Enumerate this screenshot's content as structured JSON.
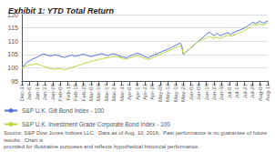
{
  "chart_data": {
    "type": "line",
    "title": "Exhibit 1: YTD Total Return",
    "footnote": "Source: S&P Dow Jones Indices LLC.  Data as of Aug. 10, 2016.  Past performance is no guarantee of future results.  Chart is\nprovided for illustrative purposes and reflects hypothetical historical performance.",
    "categories": [
      "Dec-31",
      null,
      null,
      null,
      null,
      "Jan-07",
      null,
      null,
      null,
      null,
      "Jan-14",
      null,
      null,
      null,
      null,
      "Jan-21",
      null,
      null,
      null,
      null,
      "Jan-28",
      null,
      null,
      null,
      null,
      "Feb-04",
      null,
      null,
      null,
      null,
      "Feb-11",
      null,
      null,
      null,
      null,
      "Feb-18",
      null,
      null,
      null,
      null,
      "Feb-25",
      null,
      null,
      null,
      null,
      "Mar-03",
      null,
      null,
      null,
      null,
      "Mar-10",
      null,
      null,
      null,
      null,
      "Mar-17",
      null,
      null,
      null,
      null,
      "Mar-24",
      null,
      null,
      null,
      null,
      "Mar-31",
      null,
      null,
      null,
      null,
      "Apr-07",
      null,
      null,
      null,
      null,
      "Apr-14",
      null,
      null,
      null,
      null,
      "Apr-21",
      null,
      null,
      null,
      null,
      "Apr-28",
      null,
      null,
      null,
      null,
      "May-05",
      null,
      null,
      null,
      null,
      "May-12",
      null,
      null,
      null,
      null,
      "May-19",
      null,
      null,
      null,
      null,
      "May-26",
      null,
      null,
      null,
      null,
      "Jun-02",
      null,
      null,
      null,
      null,
      "Jun-09",
      null,
      null,
      null,
      null,
      "Jun-16",
      null,
      null,
      null,
      null,
      "Jun-23",
      null,
      null,
      null,
      null,
      "Jun-30",
      null,
      null,
      null,
      null,
      "Jul-07",
      null,
      null,
      null,
      null,
      "Jul-14",
      null,
      null,
      null,
      null,
      "Jul-21",
      null,
      null,
      null,
      null,
      "Jul-28",
      null,
      null,
      null,
      null,
      "Aug-04",
      null,
      null,
      null,
      null,
      "Aug-11"
    ],
    "series": [
      {
        "name": "S&P U.K. Gilt Bond Index - 100",
        "values": [
          100.0,
          100.5,
          101.2,
          101.8,
          102.3,
          102.6,
          102.9,
          103.3,
          103.5,
          103.8,
          104.0,
          104.3,
          104.6,
          104.9,
          105.2,
          105.0,
          104.8,
          104.6,
          104.5,
          104.4,
          104.6,
          104.8,
          104.9,
          104.7,
          104.5,
          104.3,
          104.1,
          104.0,
          103.9,
          104.1,
          104.3,
          104.5,
          104.7,
          104.6,
          104.4,
          104.3,
          104.5,
          104.6,
          104.8,
          105.0,
          105.1,
          104.9,
          104.7,
          104.5,
          104.3,
          104.2,
          104.4,
          104.5,
          104.7,
          104.8,
          105.0,
          105.2,
          105.3,
          105.1,
          104.9,
          104.7,
          104.5,
          104.8,
          105.0,
          105.2,
          105.3,
          105.1,
          104.8,
          104.5,
          104.3,
          104.1,
          104.0,
          103.9,
          103.8,
          104.0,
          104.3,
          104.6,
          104.8,
          105.0,
          105.3,
          105.5,
          105.3,
          105.1,
          104.8,
          104.5,
          104.2,
          104.0,
          103.8,
          104.0,
          104.3,
          104.5,
          104.8,
          105.0,
          105.2,
          105.5,
          105.8,
          106.0,
          106.3,
          106.5,
          106.7,
          106.9,
          107.2,
          107.5,
          107.8,
          108.1,
          108.4,
          108.7,
          109.0,
          109.3,
          108.5,
          105.0,
          105.5,
          106.0,
          106.5,
          107.0,
          107.5,
          108.0,
          108.5,
          109.0,
          109.5,
          110.0,
          110.5,
          111.0,
          111.5,
          112.0,
          112.5,
          113.0,
          113.3,
          113.0,
          112.5,
          112.0,
          112.5,
          113.0,
          112.5,
          112.0,
          112.3,
          112.5,
          112.8,
          113.0,
          113.2,
          112.8,
          112.5,
          113.0,
          113.3,
          113.5,
          113.8,
          114.0,
          114.2,
          114.5,
          114.8,
          115.0,
          115.3,
          115.8,
          116.2,
          116.5,
          117.0,
          117.0,
          116.5,
          116.8,
          117.2,
          117.5,
          117.0,
          116.8,
          117.0,
          117.3,
          117.5
        ]
      },
      {
        "name": "S&P U.K. Investment Grade Corporate Bond Index - 100",
        "values": [
          100.0,
          100.2,
          100.5,
          100.7,
          100.9,
          101.0,
          101.1,
          101.2,
          101.3,
          101.4,
          101.3,
          101.2,
          101.0,
          100.8,
          100.6,
          100.4,
          100.2,
          100.0,
          99.8,
          99.6,
          99.5,
          99.4,
          99.5,
          99.7,
          99.8,
          99.6,
          99.5,
          99.3,
          99.2,
          99.4,
          99.6,
          99.8,
          100.0,
          100.2,
          100.4,
          100.5,
          100.7,
          100.9,
          101.1,
          101.3,
          101.5,
          101.7,
          101.9,
          102.0,
          102.2,
          102.4,
          102.6,
          102.7,
          102.8,
          102.9,
          103.0,
          103.2,
          103.4,
          103.5,
          103.6,
          103.7,
          103.8,
          103.9,
          104.0,
          104.1,
          104.2,
          104.3,
          104.2,
          104.0,
          103.8,
          103.6,
          103.5,
          103.4,
          103.3,
          103.5,
          103.7,
          103.8,
          104.0,
          104.2,
          104.4,
          104.5,
          104.3,
          104.2,
          104.0,
          103.8,
          103.5,
          103.3,
          103.1,
          103.3,
          103.5,
          103.8,
          104.0,
          104.3,
          104.5,
          104.8,
          105.0,
          105.3,
          105.5,
          105.8,
          106.0,
          106.2,
          106.5,
          106.8,
          107.0,
          107.3,
          107.5,
          107.8,
          108.0,
          108.2,
          107.8,
          105.2,
          105.5,
          106.0,
          106.5,
          107.0,
          107.5,
          108.0,
          108.5,
          109.0,
          109.5,
          110.0,
          110.3,
          110.5,
          110.8,
          111.0,
          111.2,
          111.5,
          111.8,
          111.5,
          111.2,
          111.0,
          111.3,
          111.5,
          111.2,
          111.0,
          111.3,
          111.5,
          111.8,
          112.0,
          112.3,
          112.0,
          111.8,
          112.0,
          112.2,
          112.5,
          112.8,
          113.0,
          113.2,
          113.5,
          113.8,
          114.0,
          114.3,
          114.8,
          115.2,
          115.5,
          116.0,
          116.2,
          115.8,
          116.0,
          116.3,
          116.5,
          116.2,
          116.0,
          116.3,
          116.5,
          116.8
        ]
      }
    ],
    "ylim": [
      95,
      120
    ],
    "yticks": [
      95,
      100,
      105,
      110,
      115,
      120
    ],
    "grid": true,
    "legend": "bottom"
  }
}
